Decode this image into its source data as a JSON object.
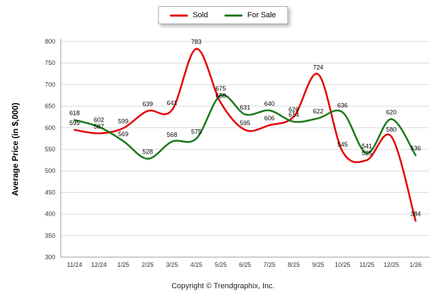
{
  "legend": {
    "items": [
      {
        "label": "Sold"
      },
      {
        "label": "For Sale"
      }
    ]
  },
  "footer": "Copyright © Trendgraphix, Inc.",
  "chart_data": {
    "type": "line",
    "title": "",
    "xlabel": "",
    "ylabel": "Average Price (in $,000)",
    "categories": [
      "11/24",
      "12/24",
      "1/25",
      "2/25",
      "3/25",
      "4/25",
      "5/25",
      "6/25",
      "7/25",
      "8/25",
      "9/25",
      "10/25",
      "11/25",
      "12/25",
      "1/26"
    ],
    "series": [
      {
        "name": "Sold",
        "color": "#e60000",
        "values": [
          595,
          587,
          599,
          639,
          641,
          783,
          658,
          595,
          606,
          626,
          724,
          545,
          525,
          580,
          384
        ]
      },
      {
        "name": "For Sale",
        "color": "#1a7a1a",
        "values": [
          618,
          602,
          569,
          528,
          568,
          575,
          675,
          631,
          640,
          614,
          622,
          636,
          541,
          620,
          536
        ]
      }
    ],
    "ylim": [
      300,
      800
    ],
    "ytick_step": 50,
    "grid": true,
    "legend_position": "top",
    "grid_color": "#d9d9d9",
    "axis_color": "#999999",
    "tick_label_color": "#333333",
    "data_label_color": "#000000"
  }
}
